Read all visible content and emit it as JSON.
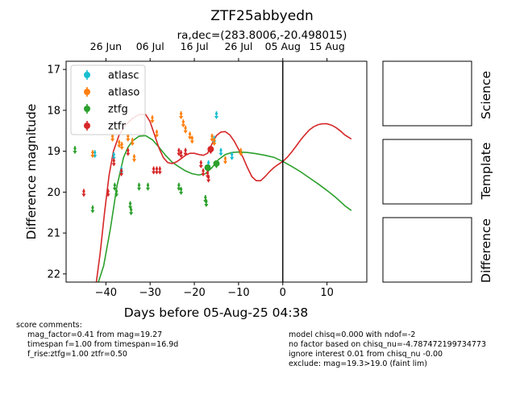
{
  "chart_data": {
    "type": "scatter",
    "title": "ZTF25abbyedn",
    "subtitle": "ra,dec=(283.8006,-20.498015)",
    "xlabel": "Days before 05-Aug-25 04:38",
    "ylabel": "Difference magnitude",
    "xlim": [
      -49,
      19
    ],
    "ylim": [
      22.2,
      16.8
    ],
    "y_inverted": true,
    "x_ticks": [
      -40,
      -30,
      -20,
      -10,
      0,
      10
    ],
    "y_ticks": [
      17,
      18,
      19,
      20,
      21,
      22
    ],
    "top_axis_ticks": [
      {
        "label": "26 Jun",
        "x": -40
      },
      {
        "label": "06 Jul",
        "x": -30
      },
      {
        "label": "16 Jul",
        "x": -20
      },
      {
        "label": "26 Jul",
        "x": -10
      },
      {
        "label": "05 Aug",
        "x": 0
      },
      {
        "label": "15 Aug",
        "x": 10
      }
    ],
    "reference_line_x": 0,
    "legend_position": "top-left",
    "series": [
      {
        "name": "atlasc",
        "color": "#17becf",
        "points": [
          [
            -42.5,
            19.05
          ],
          [
            -38.2,
            19.1
          ],
          [
            -36.5,
            19.45
          ],
          [
            -16.8,
            19.3
          ],
          [
            -15.5,
            18.7
          ],
          [
            -15.0,
            18.1
          ],
          [
            -14.0,
            19.0
          ],
          [
            -11.5,
            19.1
          ]
        ]
      },
      {
        "name": "atlaso",
        "color": "#ff7f0e",
        "points": [
          [
            -43.0,
            19.05
          ],
          [
            -38.5,
            18.65
          ],
          [
            -37.0,
            18.8
          ],
          [
            -36.4,
            18.85
          ],
          [
            -35.0,
            18.65
          ],
          [
            -34.0,
            18.75
          ],
          [
            -33.6,
            19.15
          ],
          [
            -29.5,
            18.2
          ],
          [
            -28.5,
            18.55
          ],
          [
            -23.0,
            18.1
          ],
          [
            -22.5,
            18.3
          ],
          [
            -22.0,
            18.45
          ],
          [
            -21.0,
            18.6
          ],
          [
            -20.5,
            18.7
          ],
          [
            -16.0,
            18.65
          ],
          [
            -15.5,
            18.75
          ],
          [
            -13.0,
            19.2
          ],
          [
            -9.5,
            19.0
          ]
        ]
      },
      {
        "name": "ztfg",
        "color": "#2ca02c",
        "points": [
          [
            -47.0,
            18.95
          ],
          [
            -43.0,
            20.4
          ],
          [
            -38.0,
            19.85
          ],
          [
            -37.6,
            20.0
          ],
          [
            -34.5,
            20.3
          ],
          [
            -34.3,
            20.45
          ],
          [
            -32.5,
            19.85
          ],
          [
            -30.5,
            19.85
          ],
          [
            -23.5,
            19.85
          ],
          [
            -23.0,
            19.95
          ],
          [
            -17.5,
            20.15
          ],
          [
            -17.3,
            20.25
          ],
          [
            -17.0,
            19.4
          ],
          [
            -15.0,
            19.3
          ]
        ]
      },
      {
        "name": "ztfr",
        "color": "#d62728",
        "points": [
          [
            -45.0,
            20.0
          ],
          [
            -39.5,
            20.0
          ],
          [
            -38.2,
            19.25
          ],
          [
            -36.5,
            19.5
          ],
          [
            -35.0,
            19.0
          ],
          [
            -29.2,
            19.45
          ],
          [
            -28.5,
            19.45
          ],
          [
            -27.8,
            19.45
          ],
          [
            -23.5,
            19.0
          ],
          [
            -23.0,
            19.05
          ],
          [
            -22.0,
            19.0
          ],
          [
            -18.5,
            19.3
          ],
          [
            -18.0,
            19.5
          ],
          [
            -17.0,
            19.55
          ],
          [
            -16.8,
            19.65
          ],
          [
            -16.3,
            18.95
          ]
        ]
      }
    ],
    "model_curves": [
      {
        "color": "#2ca02c",
        "points": [
          [
            -42.0,
            22.3
          ],
          [
            -40.5,
            21.8
          ],
          [
            -39.0,
            20.9
          ],
          [
            -37.5,
            19.85
          ],
          [
            -36.0,
            19.15
          ],
          [
            -35.0,
            18.9
          ],
          [
            -34.0,
            18.75
          ],
          [
            -32.5,
            18.63
          ],
          [
            -31.0,
            18.62
          ],
          [
            -29.5,
            18.72
          ],
          [
            -28.0,
            18.9
          ],
          [
            -26.5,
            19.1
          ],
          [
            -25.0,
            19.27
          ],
          [
            -23.5,
            19.38
          ],
          [
            -22.0,
            19.48
          ],
          [
            -20.5,
            19.55
          ],
          [
            -19.0,
            19.58
          ],
          [
            -17.5,
            19.55
          ],
          [
            -16.0,
            19.4
          ],
          [
            -14.5,
            19.2
          ],
          [
            -13.0,
            19.08
          ],
          [
            -11.5,
            19.03
          ],
          [
            -10.0,
            19.02
          ],
          [
            -8.0,
            19.03
          ],
          [
            -6.0,
            19.06
          ],
          [
            -4.0,
            19.1
          ],
          [
            -2.0,
            19.15
          ],
          [
            0.0,
            19.25
          ],
          [
            2.0,
            19.37
          ],
          [
            4.0,
            19.5
          ],
          [
            6.0,
            19.65
          ],
          [
            8.0,
            19.8
          ],
          [
            10.0,
            19.96
          ],
          [
            12.0,
            20.13
          ],
          [
            14.0,
            20.33
          ],
          [
            15.5,
            20.45
          ]
        ]
      },
      {
        "color": "#d62728",
        "points": [
          [
            -42.3,
            22.3
          ],
          [
            -41.3,
            21.5
          ],
          [
            -40.3,
            20.5
          ],
          [
            -39.3,
            19.6
          ],
          [
            -38.3,
            19.0
          ],
          [
            -37.0,
            18.6
          ],
          [
            -35.5,
            18.35
          ],
          [
            -34.0,
            18.2
          ],
          [
            -32.5,
            18.1
          ],
          [
            -31.0,
            18.1
          ],
          [
            -30.0,
            18.28
          ],
          [
            -29.0,
            18.6
          ],
          [
            -28.0,
            18.92
          ],
          [
            -27.0,
            19.16
          ],
          [
            -26.0,
            19.28
          ],
          [
            -25.0,
            19.3
          ],
          [
            -24.0,
            19.26
          ],
          [
            -23.0,
            19.18
          ],
          [
            -22.0,
            19.1
          ],
          [
            -21.0,
            19.05
          ],
          [
            -20.0,
            19.05
          ],
          [
            -19.0,
            19.08
          ],
          [
            -18.0,
            19.1
          ],
          [
            -17.0,
            19.05
          ],
          [
            -16.0,
            18.82
          ],
          [
            -15.0,
            18.62
          ],
          [
            -14.0,
            18.53
          ],
          [
            -13.0,
            18.52
          ],
          [
            -12.0,
            18.6
          ],
          [
            -11.0,
            18.75
          ],
          [
            -10.0,
            18.95
          ],
          [
            -9.0,
            19.15
          ],
          [
            -8.0,
            19.4
          ],
          [
            -7.0,
            19.62
          ],
          [
            -6.0,
            19.72
          ],
          [
            -5.0,
            19.72
          ],
          [
            -4.0,
            19.62
          ],
          [
            -3.0,
            19.5
          ],
          [
            -2.0,
            19.4
          ],
          [
            -1.0,
            19.32
          ],
          [
            0.0,
            19.25
          ],
          [
            1.0,
            19.15
          ],
          [
            2.0,
            19.02
          ],
          [
            3.0,
            18.88
          ],
          [
            4.0,
            18.73
          ],
          [
            5.0,
            18.6
          ],
          [
            6.0,
            18.48
          ],
          [
            7.0,
            18.4
          ],
          [
            8.0,
            18.35
          ],
          [
            9.0,
            18.33
          ],
          [
            10.0,
            18.33
          ],
          [
            11.0,
            18.36
          ],
          [
            12.0,
            18.42
          ],
          [
            13.0,
            18.5
          ],
          [
            14.0,
            18.6
          ],
          [
            15.5,
            18.7
          ]
        ]
      }
    ]
  },
  "side_panels": {
    "science_label": "Science",
    "template_label": "Template",
    "difference_label": "Difference"
  },
  "score_comments": {
    "header": "score comments:",
    "left_lines": [
      "mag_factor=0.41 from mag=19.27",
      "timespan f=1.00 from timespan=16.9d",
      "f_rise:ztfg=1.00 ztfr=0.50"
    ],
    "right_lines": [
      "model chisq=0.000 with ndof=-2",
      "no factor based on chisq_nu=-4.787472199734773",
      "ignore interest 0.01 from chisq_nu -0.00",
      "exclude: mag=19.3>19.0 (faint lim)"
    ]
  }
}
